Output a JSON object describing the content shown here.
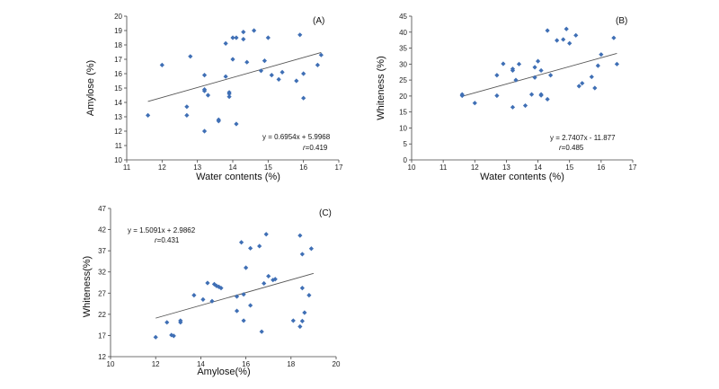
{
  "chart_data": [
    {
      "type": "scatter",
      "panel_label": "(A)",
      "xlabel": "Water contents (%)",
      "ylabel": "Amylose (%)",
      "xlim": [
        11,
        17
      ],
      "ylim": [
        10,
        20
      ],
      "x_ticks": [
        "11",
        "12",
        "13",
        "14",
        "15",
        "16",
        "17"
      ],
      "y_ticks": [
        "10",
        "11",
        "12",
        "13",
        "14",
        "15",
        "16",
        "17",
        "18",
        "19",
        "20"
      ],
      "equation": "y = 0.6954x + 5.9968",
      "r_label": "r",
      "r_value": "=0.419",
      "trendline": {
        "slope": 0.6954,
        "intercept": 5.9968,
        "x_start": 11.6,
        "x_end": 16.5
      },
      "marker_color": "#3f6fb5",
      "points": [
        [
          11.6,
          13.1
        ],
        [
          12.0,
          16.6
        ],
        [
          12.7,
          13.7
        ],
        [
          12.7,
          13.1
        ],
        [
          12.8,
          17.2
        ],
        [
          13.2,
          15.9
        ],
        [
          13.2,
          14.9
        ],
        [
          13.2,
          14.8
        ],
        [
          13.2,
          12.0
        ],
        [
          13.3,
          14.5
        ],
        [
          13.6,
          12.8
        ],
        [
          13.6,
          12.7
        ],
        [
          13.8,
          15.8
        ],
        [
          13.8,
          18.1
        ],
        [
          13.9,
          14.6
        ],
        [
          13.9,
          14.7
        ],
        [
          13.9,
          14.4
        ],
        [
          14.0,
          18.5
        ],
        [
          14.0,
          17.0
        ],
        [
          14.1,
          18.5
        ],
        [
          14.1,
          12.5
        ],
        [
          14.3,
          18.4
        ],
        [
          14.3,
          18.9
        ],
        [
          14.4,
          16.8
        ],
        [
          14.6,
          19.0
        ],
        [
          14.8,
          16.2
        ],
        [
          14.9,
          16.9
        ],
        [
          15.0,
          18.5
        ],
        [
          15.1,
          15.9
        ],
        [
          15.3,
          15.6
        ],
        [
          15.4,
          16.1
        ],
        [
          15.8,
          15.5
        ],
        [
          15.9,
          18.7
        ],
        [
          16.0,
          16.0
        ],
        [
          16.0,
          14.3
        ],
        [
          16.4,
          16.6
        ],
        [
          16.5,
          17.3
        ]
      ]
    },
    {
      "type": "scatter",
      "panel_label": "(B)",
      "xlabel": "Water contents (%)",
      "ylabel": "Whiteness (%)",
      "xlim": [
        10,
        17
      ],
      "ylim": [
        0,
        45
      ],
      "x_ticks": [
        "10",
        "11",
        "12",
        "13",
        "14",
        "15",
        "16",
        "17"
      ],
      "y_ticks": [
        "0",
        "5",
        "10",
        "15",
        "20",
        "25",
        "30",
        "35",
        "40",
        "45"
      ],
      "equation": "y = 2.7407x - 11.877",
      "r_label": "r",
      "r_value": "=0.485",
      "trendline": {
        "slope": 2.7407,
        "intercept": -11.877,
        "x_start": 11.6,
        "x_end": 16.5
      },
      "marker_color": "#3f6fb5",
      "points": [
        [
          11.6,
          20.5
        ],
        [
          11.6,
          20.1
        ],
        [
          12.0,
          17.8
        ],
        [
          12.7,
          26.5
        ],
        [
          12.7,
          20.1
        ],
        [
          12.9,
          30.1
        ],
        [
          13.2,
          28.0
        ],
        [
          13.2,
          28.5
        ],
        [
          13.2,
          16.5
        ],
        [
          13.3,
          25.0
        ],
        [
          13.4,
          30.0
        ],
        [
          13.6,
          17.0
        ],
        [
          13.8,
          20.5
        ],
        [
          13.9,
          25.8
        ],
        [
          13.9,
          29.0
        ],
        [
          14.0,
          30.9
        ],
        [
          14.1,
          28.0
        ],
        [
          14.1,
          20.2
        ],
        [
          14.1,
          20.5
        ],
        [
          14.3,
          40.5
        ],
        [
          14.3,
          19.0
        ],
        [
          14.4,
          26.5
        ],
        [
          14.6,
          37.4
        ],
        [
          14.8,
          37.7
        ],
        [
          14.9,
          41.0
        ],
        [
          15.0,
          36.5
        ],
        [
          15.2,
          39.0
        ],
        [
          15.3,
          23.1
        ],
        [
          15.4,
          24.0
        ],
        [
          15.7,
          26.0
        ],
        [
          15.8,
          22.5
        ],
        [
          15.9,
          29.5
        ],
        [
          16.0,
          33.0
        ],
        [
          16.4,
          38.2
        ],
        [
          16.5,
          30.0
        ]
      ]
    },
    {
      "type": "scatter",
      "panel_label": "(C)",
      "xlabel": "Amylose(%)",
      "ylabel": "Whiteness(%)",
      "xlim": [
        10,
        20
      ],
      "ylim": [
        12,
        47
      ],
      "x_ticks": [
        "10",
        "12",
        "14",
        "16",
        "18",
        "20"
      ],
      "y_ticks": [
        "12",
        "17",
        "22",
        "27",
        "32",
        "37",
        "42",
        "47"
      ],
      "equation": "y = 1.5091x + 2.9862",
      "r_label": "r",
      "r_value": "=0.431",
      "trendline": {
        "slope": 1.5091,
        "intercept": 2.9862,
        "x_start": 12.0,
        "x_end": 19.0
      },
      "marker_color": "#3f6fb5",
      "points": [
        [
          12.0,
          16.6
        ],
        [
          12.5,
          20.1
        ],
        [
          12.7,
          17.1
        ],
        [
          12.8,
          16.9
        ],
        [
          13.1,
          20.5
        ],
        [
          13.1,
          20.1
        ],
        [
          13.7,
          26.5
        ],
        [
          14.1,
          25.5
        ],
        [
          14.3,
          29.4
        ],
        [
          14.5,
          25.1
        ],
        [
          14.6,
          29.1
        ],
        [
          14.7,
          28.7
        ],
        [
          14.8,
          28.5
        ],
        [
          14.9,
          28.2
        ],
        [
          15.6,
          26.2
        ],
        [
          15.6,
          22.8
        ],
        [
          15.8,
          39.0
        ],
        [
          15.9,
          26.7
        ],
        [
          15.9,
          20.5
        ],
        [
          16.0,
          33.0
        ],
        [
          16.2,
          37.6
        ],
        [
          16.2,
          24.1
        ],
        [
          16.6,
          38.1
        ],
        [
          16.7,
          17.9
        ],
        [
          16.8,
          29.3
        ],
        [
          16.9,
          40.9
        ],
        [
          17.0,
          31.0
        ],
        [
          17.2,
          30.1
        ],
        [
          17.3,
          30.3
        ],
        [
          18.1,
          20.5
        ],
        [
          18.4,
          40.6
        ],
        [
          18.4,
          19.1
        ],
        [
          18.5,
          36.2
        ],
        [
          18.5,
          28.2
        ],
        [
          18.5,
          20.4
        ],
        [
          18.6,
          22.4
        ],
        [
          18.8,
          26.5
        ],
        [
          18.9,
          37.5
        ]
      ]
    }
  ]
}
